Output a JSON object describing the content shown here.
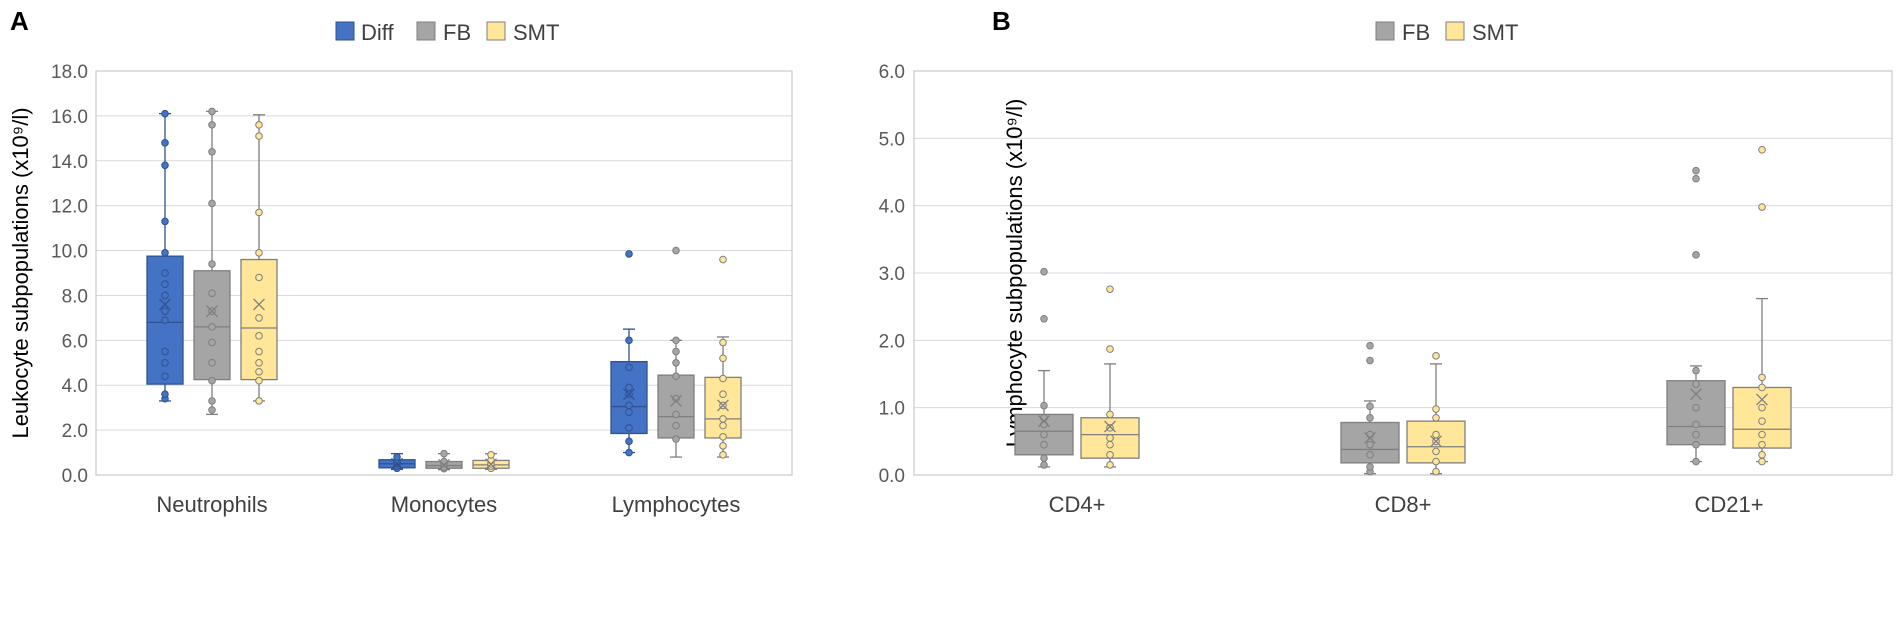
{
  "chart_data": [
    {
      "type": "boxplot",
      "panel_label": "A",
      "ylabel": "Leukocyte subpopulations (x10⁹/l)",
      "ylim": [
        0,
        18
      ],
      "yticks": [
        "0.0",
        "2.0",
        "4.0",
        "6.0",
        "8.0",
        "10.0",
        "12.0",
        "14.0",
        "16.0",
        "18.0"
      ],
      "ytick_values": [
        0,
        2,
        4,
        6,
        8,
        10,
        12,
        14,
        16,
        18
      ],
      "grid": true,
      "legend_position": "top-center",
      "categories": [
        "Neutrophils",
        "Monocytes",
        "Lymphocytes"
      ],
      "series": [
        {
          "name": "Diff",
          "color": "#4472C4",
          "stroke": "#2F528F",
          "boxes": [
            {
              "whisker_low": 3.3,
              "q1": 4.05,
              "median": 6.8,
              "q3": 9.75,
              "whisker_high": 16.1,
              "mean": 7.6,
              "points": [
                3.4,
                3.6,
                4.4,
                5.0,
                5.5,
                6.9,
                7.3,
                8.0,
                8.5,
                9.0,
                9.9,
                11.3,
                13.8,
                14.8,
                16.1
              ]
            },
            {
              "whisker_low": 0.25,
              "q1": 0.32,
              "median": 0.5,
              "q3": 0.68,
              "whisker_high": 0.95,
              "mean": 0.5,
              "points": [
                0.3,
                0.4,
                0.5,
                0.55,
                0.6,
                0.8
              ]
            },
            {
              "whisker_low": 1.0,
              "q1": 1.85,
              "median": 3.05,
              "q3": 5.05,
              "whisker_high": 6.5,
              "mean": 3.6,
              "points": [
                1.0,
                1.5,
                2.1,
                2.8,
                3.1,
                3.6,
                3.9,
                4.8,
                6.0,
                9.85
              ]
            }
          ]
        },
        {
          "name": "FB",
          "color": "#A5A5A5",
          "stroke": "#7F7F7F",
          "boxes": [
            {
              "whisker_low": 2.7,
              "q1": 4.25,
              "median": 6.6,
              "q3": 9.1,
              "whisker_high": 16.2,
              "mean": 7.3,
              "points": [
                2.9,
                3.3,
                4.2,
                5.0,
                5.9,
                6.6,
                7.3,
                8.1,
                9.4,
                12.1,
                14.4,
                15.6,
                16.2
              ]
            },
            {
              "whisker_low": 0.25,
              "q1": 0.3,
              "median": 0.42,
              "q3": 0.6,
              "whisker_high": 0.95,
              "mean": 0.45,
              "points": [
                0.28,
                0.35,
                0.5,
                0.6,
                0.95
              ]
            },
            {
              "whisker_low": 0.8,
              "q1": 1.65,
              "median": 2.6,
              "q3": 4.45,
              "whisker_high": 6.0,
              "mean": 3.3,
              "points": [
                1.6,
                2.2,
                2.7,
                3.4,
                4.4,
                5.0,
                5.5,
                6.0,
                10.0
              ]
            }
          ]
        },
        {
          "name": "SMT",
          "color": "#FFE699",
          "stroke": "#7F7F7F",
          "boxes": [
            {
              "whisker_low": 3.3,
              "q1": 4.25,
              "median": 6.55,
              "q3": 9.6,
              "whisker_high": 16.05,
              "mean": 7.6,
              "points": [
                3.3,
                4.2,
                4.6,
                5.0,
                5.5,
                6.2,
                7.0,
                8.8,
                9.9,
                11.7,
                15.1,
                15.6
              ]
            },
            {
              "whisker_low": 0.25,
              "q1": 0.3,
              "median": 0.45,
              "q3": 0.65,
              "whisker_high": 0.95,
              "mean": 0.48,
              "points": [
                0.3,
                0.4,
                0.5,
                0.65,
                0.9
              ]
            },
            {
              "whisker_low": 0.8,
              "q1": 1.65,
              "median": 2.5,
              "q3": 4.35,
              "whisker_high": 6.15,
              "mean": 3.1,
              "points": [
                0.9,
                1.3,
                1.7,
                2.2,
                2.5,
                3.1,
                3.6,
                4.3,
                5.2,
                5.9,
                9.6
              ]
            }
          ]
        }
      ]
    },
    {
      "type": "boxplot",
      "panel_label": "B",
      "ylabel": "Lymphocyte subpopulations (x10⁹/l)",
      "ylim": [
        0,
        6
      ],
      "yticks": [
        "0.0",
        "1.0",
        "2.0",
        "3.0",
        "4.0",
        "5.0",
        "6.0"
      ],
      "ytick_values": [
        0,
        1,
        2,
        3,
        4,
        5,
        6
      ],
      "grid": true,
      "legend_position": "top-center",
      "categories": [
        "CD4+",
        "CD8+",
        "CD21+"
      ],
      "series": [
        {
          "name": "FB",
          "color": "#A5A5A5",
          "stroke": "#7F7F7F",
          "boxes": [
            {
              "whisker_low": 0.12,
              "q1": 0.3,
              "median": 0.65,
              "q3": 0.9,
              "whisker_high": 1.55,
              "mean": 0.8,
              "points": [
                0.15,
                0.25,
                0.45,
                0.6,
                0.75,
                0.85,
                1.03,
                2.32,
                3.02
              ]
            },
            {
              "whisker_low": 0.02,
              "q1": 0.18,
              "median": 0.38,
              "q3": 0.78,
              "whisker_high": 1.1,
              "mean": 0.55,
              "points": [
                0.05,
                0.12,
                0.3,
                0.45,
                0.6,
                0.85,
                1.02,
                1.7,
                1.92
              ]
            },
            {
              "whisker_low": 0.2,
              "q1": 0.45,
              "median": 0.72,
              "q3": 1.4,
              "whisker_high": 1.62,
              "mean": 1.2,
              "points": [
                0.2,
                0.45,
                0.6,
                0.75,
                1.0,
                1.35,
                1.55,
                3.27,
                4.4,
                4.52
              ]
            }
          ]
        },
        {
          "name": "SMT",
          "color": "#FFE699",
          "stroke": "#7F7F7F",
          "boxes": [
            {
              "whisker_low": 0.12,
              "q1": 0.25,
              "median": 0.6,
              "q3": 0.85,
              "whisker_high": 1.65,
              "mean": 0.72,
              "points": [
                0.15,
                0.3,
                0.45,
                0.55,
                0.7,
                0.9,
                1.87,
                2.76
              ]
            },
            {
              "whisker_low": 0.02,
              "q1": 0.18,
              "median": 0.42,
              "q3": 0.8,
              "whisker_high": 1.65,
              "mean": 0.5,
              "points": [
                0.05,
                0.2,
                0.35,
                0.5,
                0.6,
                0.85,
                0.98,
                1.77
              ]
            },
            {
              "whisker_low": 0.2,
              "q1": 0.4,
              "median": 0.68,
              "q3": 1.3,
              "whisker_high": 2.62,
              "mean": 1.12,
              "points": [
                0.2,
                0.3,
                0.45,
                0.6,
                0.8,
                1.0,
                1.3,
                1.45,
                3.98,
                4.83
              ]
            }
          ]
        }
      ]
    }
  ]
}
